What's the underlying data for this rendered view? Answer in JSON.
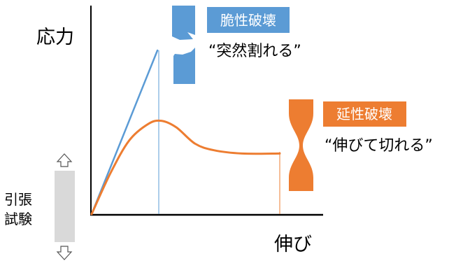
{
  "axes": {
    "ylabel": "応力",
    "xlabel": "伸び"
  },
  "tensile_test_label": [
    "引張",
    "試験"
  ],
  "brittle": {
    "badge": "脆性破壊",
    "caption": "“突然割れる”",
    "color": "#5b9bd5"
  },
  "ductile": {
    "badge": "延性破壊",
    "caption": "“伸びて切れる”",
    "color": "#ed7d31"
  },
  "icons": {
    "top_arrow": "up-arrow-icon",
    "bottom_arrow": "down-arrow-icon",
    "brittle_specimen": "broken-specimen-icon",
    "ductile_specimen": "necked-specimen-icon"
  },
  "chart_data": {
    "type": "line",
    "title": "",
    "xlabel": "伸び",
    "ylabel": "応力",
    "series": [
      {
        "name": "脆性破壊",
        "points": [
          [
            0,
            0
          ],
          [
            0.35,
            1.0
          ]
        ]
      },
      {
        "name": "延性破壊",
        "points": [
          [
            0,
            0
          ],
          [
            0.1,
            0.25
          ],
          [
            0.2,
            0.45
          ],
          [
            0.3,
            0.55
          ],
          [
            0.37,
            0.57
          ],
          [
            0.45,
            0.53
          ],
          [
            0.55,
            0.43
          ],
          [
            0.65,
            0.39
          ],
          [
            0.8,
            0.37
          ],
          [
            1.0,
            0.37
          ]
        ]
      }
    ]
  }
}
